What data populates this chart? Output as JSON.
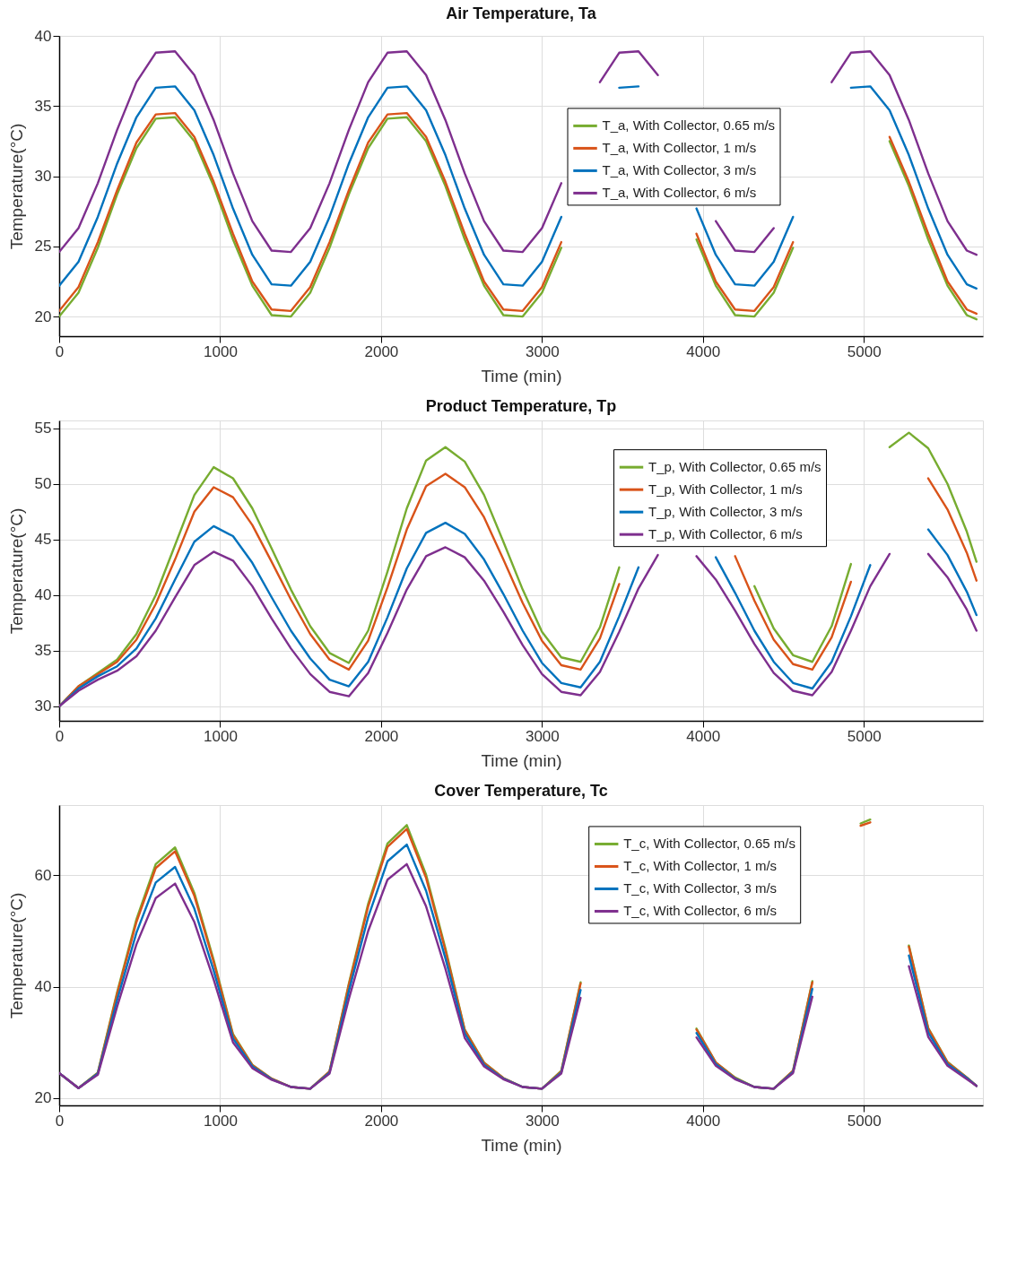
{
  "chart_data": [
    {
      "type": "line",
      "title": "Air Temperature, Ta",
      "xlabel": "Time (min)",
      "ylabel": "Temperature(°C)",
      "x": [
        0,
        120,
        240,
        360,
        480,
        600,
        720,
        840,
        960,
        1080,
        1200,
        1320,
        1440,
        1560,
        1680,
        1800,
        1920,
        2040,
        2160,
        2280,
        2400,
        2520,
        2640,
        2760,
        2880,
        3000,
        3120,
        3240,
        3360,
        3480,
        3600,
        3720,
        3840,
        3960,
        4080,
        4200,
        4320,
        4440,
        4560,
        4680,
        4800,
        4920,
        5040,
        5160,
        5280,
        5400,
        5520,
        5640,
        5700
      ],
      "series": [
        {
          "name": "T_a, With Collector, 0.65 m/s",
          "color": "#77ac30",
          "values": [
            20.0,
            21.7,
            24.9,
            28.7,
            32.0,
            34.1,
            34.2,
            32.5,
            29.3,
            25.5,
            22.2,
            20.1,
            20.0,
            21.7,
            24.9,
            28.7,
            32.0,
            34.1,
            34.2,
            32.5,
            29.3,
            25.5,
            22.2,
            20.1,
            20.0,
            21.7,
            24.9,
            null,
            null,
            null,
            null,
            null,
            null,
            25.5,
            22.2,
            20.1,
            20.0,
            21.7,
            24.9,
            null,
            null,
            null,
            null,
            32.5,
            29.3,
            25.5,
            22.2,
            20.1,
            19.8
          ]
        },
        {
          "name": "T_a, With Collector, 1 m/s",
          "color": "#d95319",
          "values": [
            20.4,
            22.1,
            25.3,
            29.0,
            32.4,
            34.4,
            34.5,
            32.8,
            29.6,
            25.9,
            22.5,
            20.5,
            20.4,
            22.1,
            25.3,
            29.0,
            32.4,
            34.4,
            34.5,
            32.8,
            29.6,
            25.9,
            22.5,
            20.5,
            20.4,
            22.1,
            25.3,
            null,
            null,
            null,
            null,
            null,
            null,
            25.9,
            22.5,
            20.5,
            20.4,
            22.1,
            25.3,
            null,
            null,
            null,
            null,
            32.8,
            29.6,
            25.9,
            22.5,
            20.5,
            20.2
          ]
        },
        {
          "name": "T_a, With Collector, 3 m/s",
          "color": "#0072bd",
          "values": [
            22.2,
            23.9,
            27.1,
            30.9,
            34.2,
            36.3,
            36.4,
            34.7,
            31.5,
            27.7,
            24.4,
            22.3,
            22.2,
            23.9,
            27.1,
            30.9,
            34.2,
            36.3,
            36.4,
            34.7,
            31.5,
            27.7,
            24.4,
            22.3,
            22.2,
            23.9,
            27.1,
            null,
            null,
            36.3,
            36.4,
            null,
            null,
            27.7,
            24.4,
            22.3,
            22.2,
            23.9,
            27.1,
            null,
            null,
            36.3,
            36.4,
            34.7,
            31.5,
            27.7,
            24.4,
            22.3,
            22.0
          ]
        },
        {
          "name": "T_a, With Collector, 6 m/s",
          "color": "#7e2f8e",
          "values": [
            24.6,
            26.3,
            29.5,
            33.3,
            36.7,
            38.8,
            38.9,
            37.2,
            34.0,
            30.2,
            26.8,
            24.7,
            24.6,
            26.3,
            29.5,
            33.3,
            36.7,
            38.8,
            38.9,
            37.2,
            34.0,
            30.2,
            26.8,
            24.7,
            24.6,
            26.3,
            29.5,
            null,
            36.7,
            38.8,
            38.9,
            37.2,
            null,
            null,
            26.8,
            24.7,
            24.6,
            26.3,
            null,
            null,
            36.7,
            38.8,
            38.9,
            37.2,
            34.0,
            30.2,
            26.8,
            24.7,
            24.4
          ]
        }
      ],
      "xlim": [
        0,
        5740
      ],
      "xticks": [
        0,
        1000,
        2000,
        3000,
        4000,
        5000
      ],
      "ylim": [
        18.6,
        40
      ],
      "yticks": [
        20,
        25,
        30,
        35,
        40
      ],
      "grid": true,
      "legend": "top right"
    },
    {
      "type": "line",
      "title": "Product Temperature, Tp",
      "xlabel": "Time (min)",
      "ylabel": "Temperature(°C)",
      "x": [
        0,
        120,
        240,
        360,
        480,
        600,
        720,
        840,
        960,
        1080,
        1200,
        1320,
        1440,
        1560,
        1680,
        1800,
        1920,
        2040,
        2160,
        2280,
        2400,
        2520,
        2640,
        2760,
        2880,
        3000,
        3120,
        3240,
        3360,
        3480,
        3600,
        3720,
        3840,
        3960,
        4080,
        4200,
        4320,
        4440,
        4560,
        4680,
        4800,
        4920,
        5040,
        5160,
        5280,
        5400,
        5520,
        5640,
        5700
      ],
      "series": [
        {
          "name": "T_p, With Collector, 0.65 m/s",
          "color": "#77ac30",
          "values": [
            30.0,
            31.8,
            33.0,
            34.2,
            36.5,
            40.0,
            44.5,
            49.0,
            51.5,
            50.5,
            47.8,
            44.2,
            40.5,
            37.2,
            34.8,
            33.9,
            36.8,
            42.1,
            47.8,
            52.1,
            53.3,
            52.0,
            49.0,
            44.8,
            40.5,
            36.7,
            34.4,
            34.0,
            37.1,
            42.5,
            null,
            null,
            null,
            null,
            null,
            null,
            40.8,
            37.0,
            34.6,
            34.0,
            37.2,
            42.8,
            null,
            53.3,
            54.6,
            53.2,
            50.0,
            45.7,
            43.0
          ]
        },
        {
          "name": "T_p, With Collector, 1 m/s",
          "color": "#d95319",
          "values": [
            30.0,
            31.8,
            32.9,
            34.0,
            36.0,
            39.2,
            43.2,
            47.5,
            49.7,
            48.8,
            46.3,
            43.0,
            39.6,
            36.5,
            34.2,
            33.3,
            35.9,
            40.7,
            45.9,
            49.8,
            50.9,
            49.7,
            47.0,
            43.2,
            39.3,
            35.9,
            33.7,
            33.3,
            36.1,
            41.0,
            null,
            null,
            null,
            null,
            null,
            43.5,
            39.5,
            36.0,
            33.8,
            33.3,
            36.2,
            41.2,
            null,
            null,
            null,
            50.5,
            47.7,
            43.8,
            41.3
          ]
        },
        {
          "name": "T_p, With Collector, 3 m/s",
          "color": "#0072bd",
          "values": [
            30.0,
            31.6,
            32.7,
            33.6,
            35.2,
            37.9,
            41.4,
            44.8,
            46.2,
            45.3,
            42.9,
            39.8,
            36.8,
            34.3,
            32.4,
            31.8,
            34.0,
            38.0,
            42.4,
            45.6,
            46.5,
            45.5,
            43.2,
            40.1,
            36.8,
            33.9,
            32.1,
            31.7,
            34.0,
            38.1,
            42.5,
            null,
            null,
            null,
            43.4,
            40.2,
            36.8,
            34.0,
            32.1,
            31.6,
            34.0,
            38.1,
            42.7,
            null,
            null,
            45.9,
            43.6,
            40.3,
            38.2
          ]
        },
        {
          "name": "T_p, With Collector, 6 m/s",
          "color": "#7e2f8e",
          "values": [
            30.0,
            31.4,
            32.4,
            33.2,
            34.5,
            36.8,
            39.8,
            42.7,
            43.9,
            43.1,
            40.8,
            37.9,
            35.2,
            32.9,
            31.3,
            30.9,
            33.0,
            36.6,
            40.5,
            43.5,
            44.3,
            43.4,
            41.3,
            38.5,
            35.5,
            32.9,
            31.3,
            31.0,
            33.1,
            36.7,
            40.6,
            43.6,
            null,
            43.5,
            41.4,
            38.6,
            35.6,
            33.0,
            31.4,
            31.0,
            33.1,
            36.8,
            40.8,
            43.7,
            null,
            43.7,
            41.6,
            38.7,
            36.8
          ]
        }
      ],
      "xlim": [
        0,
        5740
      ],
      "xticks": [
        0,
        1000,
        2000,
        3000,
        4000,
        5000
      ],
      "ylim": [
        28.7,
        55.7
      ],
      "yticks": [
        30,
        35,
        40,
        45,
        50,
        55
      ],
      "grid": true,
      "legend": "top right"
    },
    {
      "type": "line",
      "title": "Cover Temperature, Tc",
      "xlabel": "Time (min)",
      "ylabel": "Temperature(°C)",
      "x": [
        0,
        120,
        240,
        360,
        480,
        600,
        720,
        840,
        960,
        1080,
        1200,
        1320,
        1440,
        1560,
        1680,
        1800,
        1920,
        2040,
        2160,
        2280,
        2400,
        2520,
        2640,
        2760,
        2880,
        3000,
        3120,
        3240,
        3360,
        3480,
        3600,
        3720,
        3840,
        3960,
        4080,
        4200,
        4320,
        4440,
        4560,
        4680,
        4800,
        4920,
        4980,
        5040,
        5100,
        5160,
        5280,
        5400,
        5520,
        5640,
        5700
      ],
      "series": [
        {
          "name": "T_c, With Collector, 0.65 m/s",
          "color": "#77ac30",
          "values": [
            24.5,
            21.8,
            24.6,
            39.0,
            52.1,
            62.0,
            65.0,
            56.8,
            44.8,
            31.5,
            26.0,
            23.5,
            22.0,
            21.7,
            24.8,
            40.6,
            54.9,
            65.7,
            69.0,
            60.1,
            46.9,
            32.3,
            26.4,
            23.6,
            22.0,
            21.7,
            24.9,
            40.8,
            null,
            null,
            null,
            null,
            null,
            32.5,
            26.4,
            23.7,
            22.0,
            21.7,
            24.9,
            41.0,
            null,
            null,
            69.3,
            70.0,
            null,
            null,
            47.4,
            32.6,
            26.5,
            23.7,
            22.2
          ]
        },
        {
          "name": "T_c, With Collector, 1 m/s",
          "color": "#d95319",
          "values": [
            24.5,
            21.8,
            24.5,
            38.7,
            51.6,
            61.3,
            64.3,
            56.3,
            44.4,
            31.3,
            25.9,
            23.5,
            22.0,
            21.7,
            24.8,
            40.3,
            54.4,
            65.1,
            68.3,
            59.5,
            46.5,
            32.2,
            26.3,
            23.6,
            22.0,
            21.7,
            24.8,
            40.6,
            null,
            null,
            null,
            null,
            null,
            32.3,
            26.4,
            23.6,
            22.0,
            21.7,
            24.9,
            40.8,
            null,
            null,
            68.9,
            69.5,
            null,
            null,
            47.2,
            32.5,
            26.4,
            23.7,
            22.2
          ]
        },
        {
          "name": "T_c, With Collector, 3 m/s",
          "color": "#0072bd",
          "values": [
            24.5,
            21.8,
            24.4,
            37.6,
            49.7,
            58.7,
            61.5,
            54.0,
            42.9,
            30.7,
            25.7,
            23.4,
            22.0,
            21.7,
            24.6,
            39.2,
            52.5,
            62.5,
            65.5,
            57.2,
            45.1,
            31.6,
            26.0,
            23.5,
            22.0,
            21.7,
            24.6,
            39.4,
            null,
            null,
            null,
            null,
            null,
            31.7,
            26.1,
            23.5,
            22.0,
            21.7,
            24.7,
            39.6,
            null,
            null,
            null,
            null,
            null,
            null,
            45.6,
            31.8,
            26.1,
            23.6,
            22.2
          ]
        },
        {
          "name": "T_c, With Collector, 6 m/s",
          "color": "#7e2f8e",
          "values": [
            24.5,
            21.8,
            24.2,
            36.4,
            47.6,
            55.9,
            58.5,
            51.6,
            41.3,
            30.0,
            25.4,
            23.3,
            22.0,
            21.7,
            24.4,
            37.8,
            50.0,
            59.2,
            62.0,
            54.4,
            43.2,
            30.8,
            25.7,
            23.4,
            22.0,
            21.7,
            24.4,
            38.0,
            null,
            null,
            null,
            null,
            null,
            30.9,
            25.8,
            23.4,
            22.0,
            21.7,
            24.5,
            38.2,
            null,
            null,
            null,
            null,
            null,
            null,
            43.7,
            31.0,
            25.8,
            23.4,
            22.2
          ]
        }
      ],
      "xlim": [
        0,
        5740
      ],
      "xticks": [
        0,
        1000,
        2000,
        3000,
        4000,
        5000
      ],
      "ylim": [
        18.7,
        72.6
      ],
      "yticks": [
        20,
        40,
        60
      ],
      "grid": true,
      "legend": "top right"
    }
  ]
}
